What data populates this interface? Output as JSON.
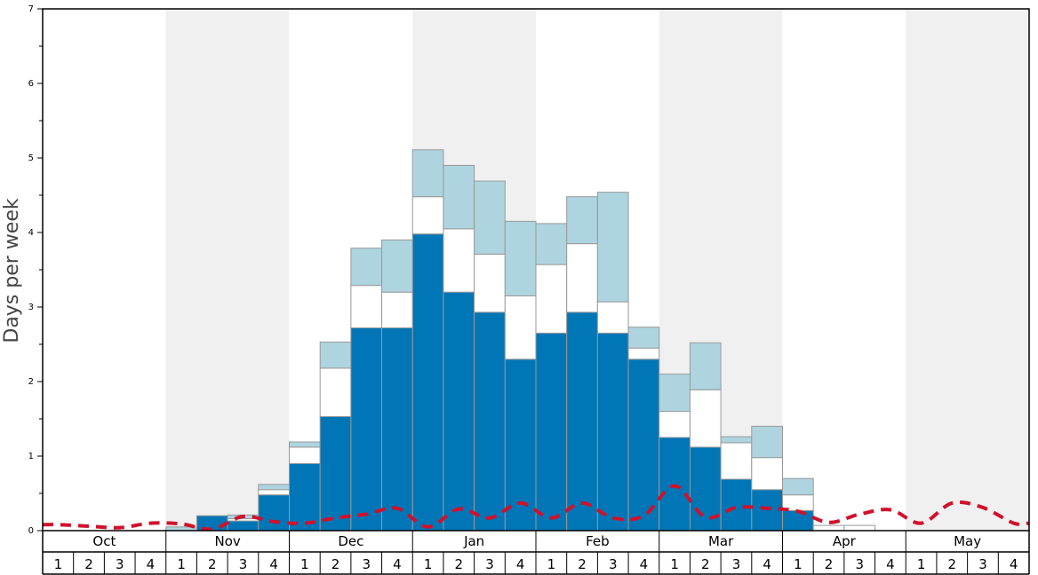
{
  "chart_data": {
    "type": "bar",
    "ylabel": "Days per week",
    "ylim": [
      0,
      7
    ],
    "yticks": [
      "0",
      "1",
      "2",
      "3",
      "4",
      "5",
      "6",
      "7"
    ],
    "months": [
      "Oct",
      "Nov",
      "Dec",
      "Jan",
      "Feb",
      "Mar",
      "Apr",
      "May"
    ],
    "week_labels": [
      "1",
      "2",
      "3",
      "4"
    ],
    "colors": {
      "base": "#0076b6",
      "middle": "#ffffff",
      "top": "#aed4e0",
      "line": "#d0112b",
      "shade": "#f0f0f0",
      "bar_stroke": "#999999"
    },
    "series": [
      {
        "values": [
          0,
          0,
          0,
          0,
          0,
          0.2,
          0.13,
          0.48,
          0.9,
          1.53,
          2.72,
          2.72,
          3.98,
          3.2,
          2.93,
          2.3,
          2.65,
          2.93,
          2.65,
          2.3,
          1.25,
          1.12,
          0.69,
          0.55,
          0.27,
          0,
          0,
          0,
          0,
          0,
          0,
          0
        ]
      },
      {
        "values": [
          0,
          0,
          0,
          0,
          0,
          0,
          0.03,
          0.07,
          0.22,
          0.65,
          0.57,
          0.48,
          0.5,
          0.85,
          0.78,
          0.85,
          0.92,
          0.92,
          0.42,
          0.15,
          0.35,
          0.77,
          0.49,
          0.43,
          0.21,
          0.07,
          0.07,
          0,
          0,
          0,
          0,
          0
        ]
      },
      {
        "values": [
          0,
          0,
          0,
          0,
          0.05,
          0,
          0.05,
          0.07,
          0.07,
          0.35,
          0.5,
          0.7,
          0.63,
          0.85,
          0.98,
          1.0,
          0.55,
          0.63,
          1.47,
          0.28,
          0.5,
          0.63,
          0.08,
          0.42,
          0.22,
          0,
          0,
          0,
          0,
          0,
          0,
          0
        ]
      },
      {
        "values": [
          0.08,
          0.06,
          0.04,
          0.1,
          0.09,
          0.02,
          0.19,
          0.12,
          0.1,
          0.17,
          0.22,
          0.3,
          0.05,
          0.29,
          0.17,
          0.37,
          0.17,
          0.37,
          0.17,
          0.2,
          0.6,
          0.18,
          0.31,
          0.3,
          0.26,
          0.11,
          0.22,
          0.28,
          0.1,
          0.37,
          0.31,
          0.1
        ]
      }
    ]
  }
}
